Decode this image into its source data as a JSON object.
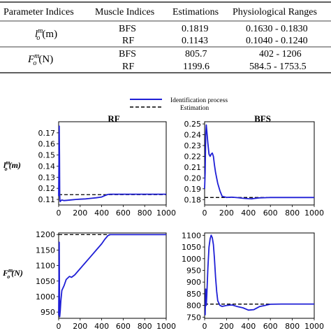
{
  "table": {
    "headers": [
      "Parameter Indices",
      "Muscle Indices",
      "Estimations",
      "Physiological Ranges"
    ],
    "groups": [
      {
        "parameter": "l_o^m(m)",
        "rows": [
          {
            "muscle": "BFS",
            "estimation": "0.1819",
            "range": "0.1630 - 0.1830"
          },
          {
            "muscle": "RF",
            "estimation": "0.1143",
            "range": "0.1040 - 0.1240"
          }
        ]
      },
      {
        "parameter": "F_o^m(N)",
        "rows": [
          {
            "muscle": "BFS",
            "estimation": "805.7",
            "range": "402 - 1206"
          },
          {
            "muscle": "RF",
            "estimation": "1199.6",
            "range": "584.5 - 1753.5"
          }
        ]
      }
    ]
  },
  "figure": {
    "legend": {
      "line_label": "Identification process",
      "dash_label": "Estimation",
      "line_color": "#1f1fd6",
      "dash_color": "#000000"
    },
    "column_titles": [
      "RF",
      "BFS"
    ],
    "row_labels": [
      "l_o^m(m)",
      "F_o^m(N)"
    ]
  },
  "chart_data": [
    {
      "type": "line",
      "panel": "RF-length",
      "xlim": [
        0,
        1000
      ],
      "ylim": [
        0.105,
        0.18
      ],
      "xticks": [
        0,
        200,
        400,
        600,
        800,
        1000
      ],
      "yticks": [
        0.11,
        0.12,
        0.13,
        0.14,
        0.15,
        0.16,
        0.17
      ],
      "ytick_labels": [
        "0.11",
        "0.12",
        "0.13",
        "0.14",
        "0.15",
        "0.16",
        "0.17"
      ],
      "estimation": 0.1143,
      "series": [
        {
          "x": [
            0,
            5,
            8,
            10,
            12,
            15,
            20,
            30,
            50,
            80,
            120,
            160,
            200,
            250,
            300,
            350,
            400,
            430,
            460,
            480,
            500,
            600,
            700,
            800,
            900,
            1000
          ],
          "y": [
            0.113,
            0.176,
            0.15,
            0.115,
            0.109,
            0.108,
            0.109,
            0.1095,
            0.109,
            0.1092,
            0.1096,
            0.11,
            0.1102,
            0.1105,
            0.111,
            0.1115,
            0.1122,
            0.1135,
            0.1145,
            0.1147,
            0.1147,
            0.1147,
            0.1147,
            0.1147,
            0.1147,
            0.1147
          ]
        }
      ]
    },
    {
      "type": "line",
      "panel": "BFS-length",
      "xlim": [
        0,
        1000
      ],
      "ylim": [
        0.175,
        0.252
      ],
      "xticks": [
        0,
        200,
        400,
        600,
        800,
        1000
      ],
      "yticks": [
        0.18,
        0.19,
        0.2,
        0.21,
        0.22,
        0.23,
        0.24,
        0.25
      ],
      "ytick_labels": [
        "0.18",
        "0.19",
        "0.20",
        "0.21",
        "0.22",
        "0.23",
        "0.24",
        "0.25"
      ],
      "estimation": 0.1819,
      "series": [
        {
          "x": [
            0,
            5,
            10,
            15,
            20,
            30,
            40,
            50,
            60,
            70,
            80,
            90,
            100,
            120,
            140,
            160,
            180,
            200,
            250,
            300,
            350,
            400,
            430,
            450,
            500,
            600,
            700,
            800,
            900,
            1000
          ],
          "y": [
            0.19,
            0.205,
            0.24,
            0.249,
            0.244,
            0.232,
            0.222,
            0.22,
            0.222,
            0.223,
            0.22,
            0.212,
            0.205,
            0.195,
            0.188,
            0.183,
            0.1825,
            0.182,
            0.1822,
            0.1818,
            0.1812,
            0.1808,
            0.1807,
            0.181,
            0.1816,
            0.1819,
            0.1819,
            0.1819,
            0.1819,
            0.1819
          ]
        }
      ]
    },
    {
      "type": "line",
      "panel": "RF-force",
      "xlim": [
        0,
        1000
      ],
      "ylim": [
        930,
        1205
      ],
      "xticks": [
        0,
        200,
        400,
        600,
        800,
        1000
      ],
      "yticks": [
        950,
        1000,
        1050,
        1100,
        1150,
        1200
      ],
      "ytick_labels": [
        "950",
        "1000",
        "1050",
        "1100",
        "1150",
        "1200"
      ],
      "estimation": 1199.6,
      "series": [
        {
          "x": [
            0,
            5,
            8,
            10,
            15,
            20,
            30,
            50,
            70,
            100,
            120,
            150,
            200,
            250,
            300,
            350,
            400,
            430,
            460,
            480,
            500,
            600,
            700,
            800,
            900,
            1000
          ],
          "y": [
            940,
            1175,
            1000,
            935,
            955,
            985,
            1020,
            1035,
            1055,
            1065,
            1062,
            1070,
            1090,
            1110,
            1130,
            1150,
            1170,
            1185,
            1197,
            1199.6,
            1199.6,
            1199.6,
            1199.6,
            1199.6,
            1199.6,
            1199.6
          ]
        }
      ]
    },
    {
      "type": "line",
      "panel": "BFS-force",
      "xlim": [
        0,
        1000
      ],
      "ylim": [
        745,
        1110
      ],
      "xticks": [
        0,
        200,
        400,
        600,
        800,
        1000
      ],
      "yticks": [
        750,
        800,
        850,
        900,
        950,
        1000,
        1050,
        1100
      ],
      "ytick_labels": [
        "750",
        "800",
        "850",
        "900",
        "950",
        "1000",
        "1050",
        "1100"
      ],
      "estimation": 805.7,
      "series": [
        {
          "x": [
            0,
            5,
            10,
            15,
            20,
            30,
            40,
            50,
            60,
            70,
            80,
            90,
            100,
            110,
            120,
            140,
            160,
            200,
            250,
            300,
            350,
            400,
            450,
            500,
            600,
            700,
            800,
            900,
            1000
          ],
          "y": [
            760,
            760,
            870,
            800,
            840,
            960,
            1050,
            1085,
            1100,
            1090,
            1060,
            1000,
            920,
            860,
            820,
            800,
            796,
            800,
            802,
            795,
            790,
            780,
            782,
            795,
            805,
            806,
            806,
            806,
            806
          ]
        }
      ]
    }
  ]
}
